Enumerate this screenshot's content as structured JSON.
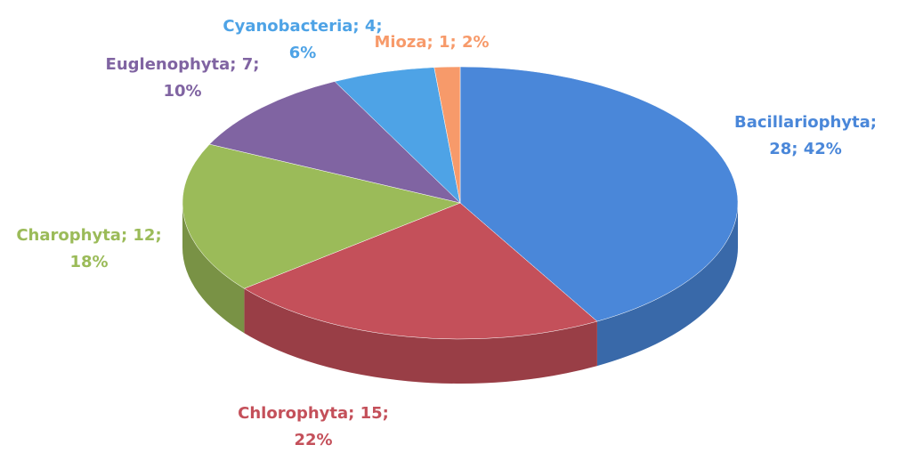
{
  "chart_data": {
    "type": "pie",
    "values": [
      28,
      15,
      12,
      7,
      4,
      1
    ],
    "value_labels": [
      [
        "Bacillariophyta;",
        "28; 42%"
      ],
      [
        "Chlorophyta; 15;",
        "22%"
      ],
      [
        "Charophyta; 12;",
        "18%"
      ],
      [
        "Euglenophyta; 7;",
        "10%"
      ],
      [
        "Cyanobacteria; 4;",
        "6%"
      ],
      [
        "Mioza; 1; 2%"
      ]
    ],
    "colors": [
      "#4a87d9",
      "#c4505a",
      "#9bbb59",
      "#8064a2",
      "#4ea3e6",
      "#f79a6a"
    ]
  }
}
